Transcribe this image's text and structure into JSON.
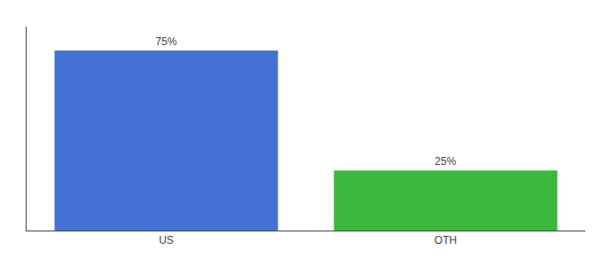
{
  "chart_data": {
    "type": "bar",
    "categories": [
      "US",
      "OTH"
    ],
    "values": [
      75,
      25
    ],
    "value_labels": [
      "75%",
      "25%"
    ],
    "data_labels": true,
    "colors": [
      "#4472d4",
      "#3cb83c"
    ],
    "ylim": [
      0,
      85
    ],
    "tick_labels": "x",
    "grid": false
  }
}
